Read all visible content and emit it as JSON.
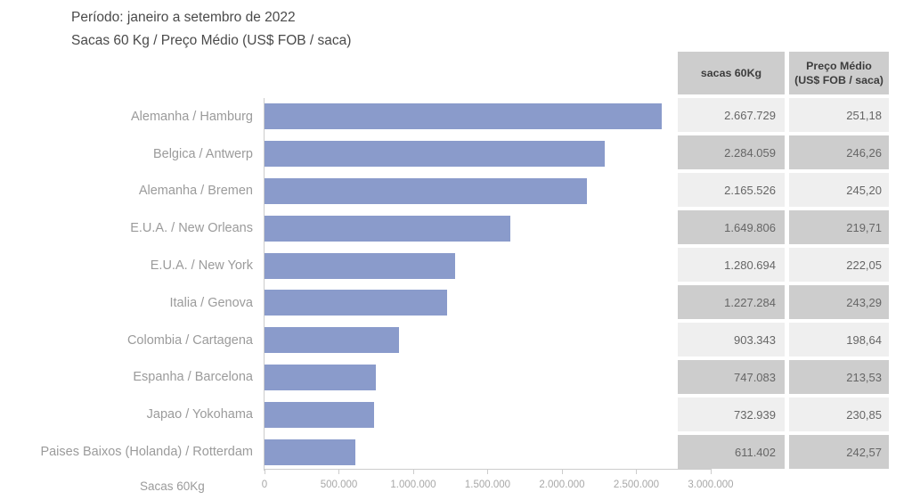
{
  "header": {
    "period_line": "Período: janeiro a setembro de 2022",
    "subtitle_line": "Sacas 60 Kg / Preço Médio (US$ FOB / saca)"
  },
  "colors": {
    "bar": "#8A9BCB",
    "axis": "#cccccc",
    "table_header_bg": "#cdcdcd",
    "row_light_bg": "#efefef",
    "row_dark_bg": "#cdcdcd"
  },
  "table": {
    "header_sacas": "sacas 60Kg",
    "header_preco_line1": "Preço Médio",
    "header_preco_line2": "(US$ FOB / saca)",
    "rows": [
      {
        "sacas": "2.667.729",
        "preco": "251,18"
      },
      {
        "sacas": "2.284.059",
        "preco": "246,26"
      },
      {
        "sacas": "2.165.526",
        "preco": "245,20"
      },
      {
        "sacas": "1.649.806",
        "preco": "219,71"
      },
      {
        "sacas": "1.280.694",
        "preco": "222,05"
      },
      {
        "sacas": "1.227.284",
        "preco": "243,29"
      },
      {
        "sacas": "903.343",
        "preco": "198,64"
      },
      {
        "sacas": "747.083",
        "preco": "213,53"
      },
      {
        "sacas": "732.939",
        "preco": "230,85"
      },
      {
        "sacas": "611.402",
        "preco": "242,57"
      }
    ]
  },
  "chart_data": {
    "type": "bar",
    "orientation": "horizontal",
    "title": "Período: janeiro a setembro de 2022 — Sacas 60 Kg / Preço Médio (US$ FOB / saca)",
    "categories": [
      "Alemanha / Hamburg",
      "Belgica / Antwerp",
      "Alemanha / Bremen",
      "E.U.A. / New Orleans",
      "E.U.A. / New York",
      "Italia / Genova",
      "Colombia / Cartagena",
      "Espanha / Barcelona",
      "Japao / Yokohama",
      "Paises Baixos (Holanda) / Rotterdam"
    ],
    "series": [
      {
        "name": "sacas 60Kg",
        "values": [
          2667729,
          2284059,
          2165526,
          1649806,
          1280694,
          1227284,
          903343,
          747083,
          732939,
          611402
        ]
      },
      {
        "name": "Preço Médio (US$ FOB / saca)",
        "values": [
          251.18,
          246.26,
          245.2,
          219.71,
          222.05,
          243.29,
          198.64,
          213.53,
          230.85,
          242.57
        ]
      }
    ],
    "xlabel": "Sacas 60Kg",
    "ylabel": "",
    "xlim": [
      0,
      3000000
    ],
    "x_ticks": [
      "0",
      "500.000",
      "1.000.000",
      "1.500.000",
      "2.000.000",
      "2.500.000",
      "3.000.000"
    ],
    "grid": false,
    "legend": false
  }
}
